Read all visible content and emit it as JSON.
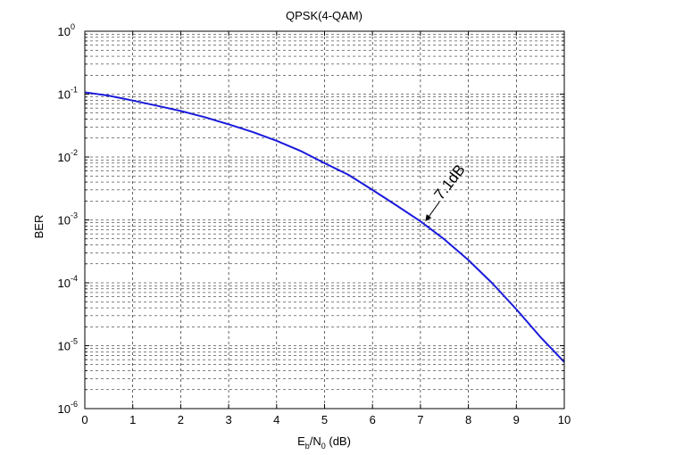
{
  "chart_data": {
    "type": "line",
    "title": "QPSK(4-QAM)",
    "xlabel": {
      "base": "E",
      "sub1": "b",
      "mid": "/N",
      "sub2": "0",
      "suffix": " (dB)"
    },
    "ylabel": "BER",
    "x_scale": "linear",
    "y_scale": "log",
    "xlim": [
      0,
      10
    ],
    "ylim": [
      1e-06,
      1
    ],
    "grid": true,
    "x_ticks": [
      "0",
      "1",
      "2",
      "3",
      "4",
      "5",
      "6",
      "7",
      "8",
      "9",
      "10"
    ],
    "y_ticks": [
      {
        "base": "10",
        "exp": "0",
        "value": 1
      },
      {
        "base": "10",
        "exp": "-1",
        "value": 0.1
      },
      {
        "base": "10",
        "exp": "-2",
        "value": 0.01
      },
      {
        "base": "10",
        "exp": "-3",
        "value": 0.001
      },
      {
        "base": "10",
        "exp": "-4",
        "value": 0.0001
      },
      {
        "base": "10",
        "exp": "-5",
        "value": 1e-05
      },
      {
        "base": "10",
        "exp": "-6",
        "value": 1e-06
      }
    ],
    "series": [
      {
        "color": "#1a1adc",
        "x": [
          0,
          0.5,
          1,
          1.5,
          2,
          2.5,
          3,
          3.5,
          4,
          4.5,
          5,
          5.5,
          6,
          6.5,
          7,
          7.5,
          8,
          8.5,
          9,
          9.5,
          10
        ],
        "y": [
          0.107,
          0.0944,
          0.0791,
          0.0655,
          0.054,
          0.043,
          0.0331,
          0.025,
          0.0181,
          0.0125,
          0.008,
          0.0052,
          0.003,
          0.0017,
          0.00095,
          0.00049,
          0.00023,
          9.8e-05,
          3.8e-05,
          1.38e-05,
          5.5e-06
        ]
      }
    ],
    "annotations": [
      {
        "text": "7.1dB",
        "x": 7.1,
        "y": 0.00095
      }
    ]
  }
}
